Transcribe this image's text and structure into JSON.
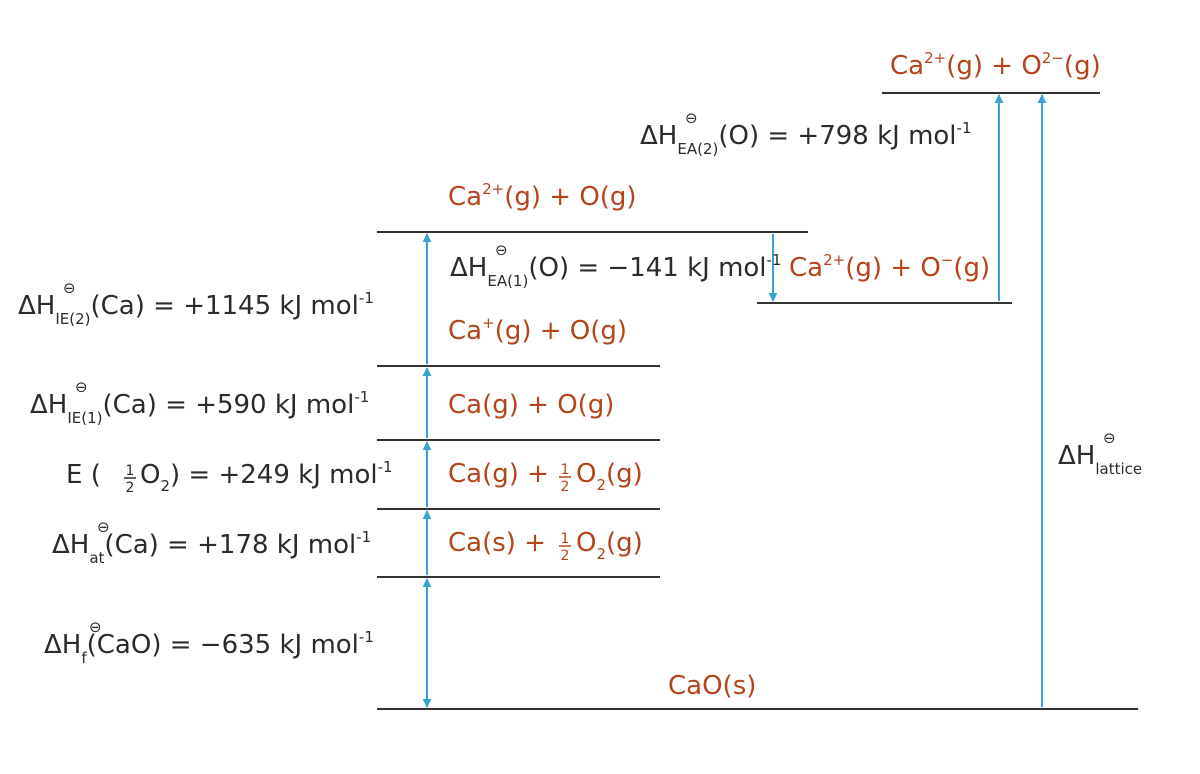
{
  "species": {
    "ca2_o2": {
      "base1": "Ca",
      "sup1": "2+",
      "mid": "(g)  +  O",
      "sup2": "2−",
      "tail": "(g)"
    },
    "ca2_o": {
      "base1": "Ca",
      "sup1": "2+",
      "tail": "(g)  +  O(g)"
    },
    "ca2_om": {
      "base1": "Ca",
      "sup1": "2+",
      "mid": "(g)  +  O",
      "sup2": "−",
      "tail": "(g)"
    },
    "ca1_o": {
      "base1": "Ca",
      "sup1": "+",
      "tail": "(g)  +  O(g)"
    },
    "cag_og": "Ca(g)  +  O(g)",
    "cag_half": {
      "a": "Ca(g)  +  ",
      "num": "1",
      "den": "2",
      "b": "O",
      "sub": "2",
      "c": "(g)"
    },
    "cas_half": {
      "a": "Ca(s)  +  ",
      "num": "1",
      "den": "2",
      "b": "O",
      "sub": "2",
      "c": "(g)"
    },
    "cao": "CaO(s)"
  },
  "labels": {
    "ea2": {
      "sym": "ΔH",
      "std": "⊖",
      "sub": "EA(2)",
      "tail": "(O) = +798 kJ mol",
      "exp": "-1"
    },
    "ea1": {
      "sym": "ΔH",
      "std": "⊖",
      "sub": "EA(1)",
      "tail": "(O) = −141 kJ mol",
      "exp": "-1"
    },
    "ie2": {
      "sym": "ΔH",
      "std": "⊖",
      "sub": "IE(2)",
      "tail": "(Ca) = +1145 kJ mol",
      "exp": "-1"
    },
    "ie1": {
      "sym": "ΔH",
      "std": "⊖",
      "sub": "IE(1)",
      "tail": "(Ca) = +590 kJ mol",
      "exp": "-1"
    },
    "e": {
      "a": "E (",
      "num": "1",
      "den": "2",
      "b": "O",
      "sub": "2",
      "c": ") = +249 kJ mol",
      "exp": "-1"
    },
    "at": {
      "sym": "ΔH",
      "std": "⊖",
      "sub": "at",
      "tail": "(Ca) = +178 kJ mol",
      "exp": "-1"
    },
    "f": {
      "sym": "ΔH",
      "std": "⊖",
      "sub": "f",
      "tail": "(CaO) = −635 kJ mol",
      "exp": "-1"
    },
    "lattice": {
      "sym": "ΔH",
      "std": "⊖",
      "sub": "lattice"
    }
  },
  "colors": {
    "species": "#b5441b",
    "arrows": "#3aa0d5",
    "levels": "#333333",
    "labels": "#2b2b2b"
  }
}
